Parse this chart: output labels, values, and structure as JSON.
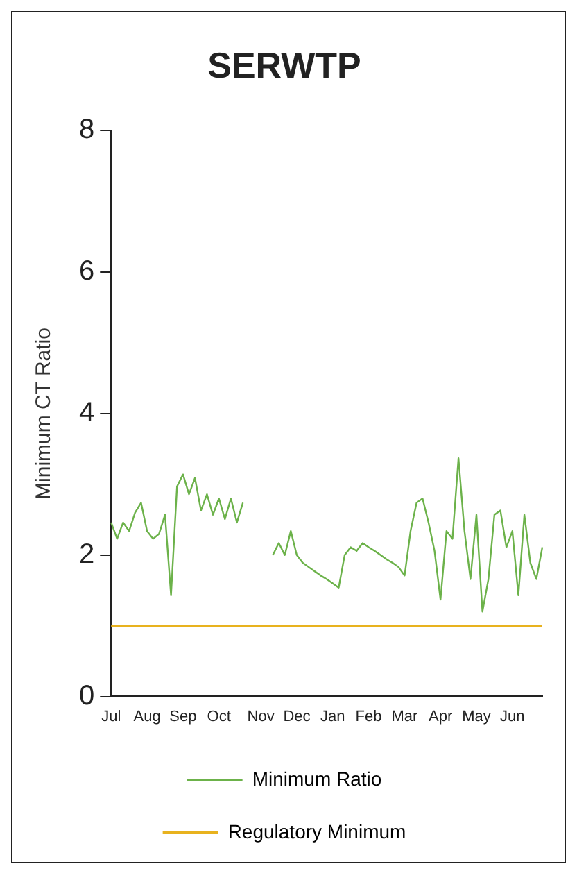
{
  "chart_data": {
    "type": "line",
    "title": "SERWTP",
    "ylabel": "Minimum CT Ratio",
    "categories": [
      "Jul",
      null,
      null,
      null,
      null,
      null,
      "Aug",
      null,
      null,
      null,
      null,
      null,
      "Sep",
      null,
      null,
      null,
      null,
      null,
      "Oct",
      null,
      null,
      null,
      null,
      null,
      null,
      "Nov",
      null,
      null,
      null,
      null,
      null,
      "Dec",
      null,
      null,
      null,
      null,
      null,
      "Jan",
      null,
      null,
      null,
      null,
      null,
      "Feb",
      null,
      null,
      null,
      null,
      null,
      "Mar",
      null,
      null,
      null,
      null,
      null,
      "Apr",
      null,
      null,
      null,
      null,
      null,
      "May",
      null,
      null,
      null,
      null,
      null,
      "Jun",
      null,
      null,
      null,
      null,
      null
    ],
    "ylim": [
      0,
      8
    ],
    "yticks": [
      0,
      2,
      4,
      6,
      8
    ],
    "legend": "bottom",
    "marker": "none",
    "series": [
      {
        "name": "Minimum Ratio",
        "color": "#6cb24a",
        "values": [
          2.46,
          2.23,
          2.46,
          2.34,
          2.6,
          2.74,
          2.34,
          2.23,
          2.3,
          2.57,
          1.43,
          2.97,
          3.14,
          2.86,
          3.09,
          2.63,
          2.86,
          2.57,
          2.8,
          2.51,
          2.8,
          2.46,
          2.74,
          null,
          null,
          null,
          null,
          2.0,
          2.17,
          2.0,
          2.34,
          2.0,
          1.89,
          1.83,
          1.77,
          1.71,
          1.66,
          1.6,
          1.54,
          2.0,
          2.11,
          2.06,
          2.17,
          2.11,
          2.06,
          2.0,
          1.94,
          1.89,
          1.83,
          1.71,
          2.34,
          2.74,
          2.8,
          2.46,
          2.06,
          1.37,
          2.34,
          2.23,
          3.37,
          2.34,
          1.66,
          2.57,
          1.2,
          1.66,
          2.57,
          2.63,
          2.11,
          2.34,
          1.43,
          2.57,
          1.89,
          1.66,
          2.11
        ]
      },
      {
        "name": "Regulatory Minimum",
        "color": "#e8b21e",
        "values": [
          1,
          1,
          1,
          1,
          1,
          1,
          1,
          1,
          1,
          1,
          1,
          1,
          1,
          1,
          1,
          1,
          1,
          1,
          1,
          1,
          1,
          1,
          1,
          1,
          1,
          1,
          1,
          1,
          1,
          1,
          1,
          1,
          1,
          1,
          1,
          1,
          1,
          1,
          1,
          1,
          1,
          1,
          1,
          1,
          1,
          1,
          1,
          1,
          1,
          1,
          1,
          1,
          1,
          1,
          1,
          1,
          1,
          1,
          1,
          1,
          1,
          1,
          1,
          1,
          1,
          1,
          1,
          1,
          1,
          1,
          1,
          1,
          1
        ]
      }
    ]
  }
}
